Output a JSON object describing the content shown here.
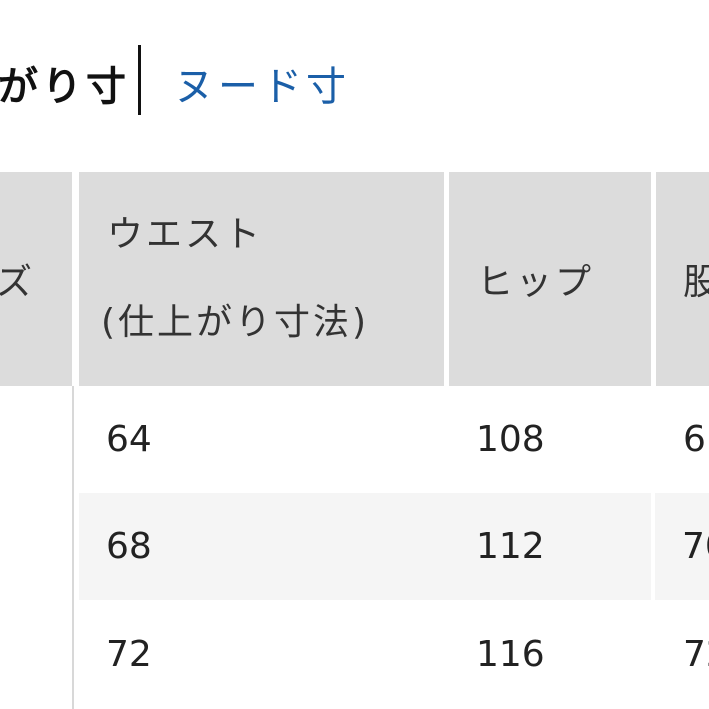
{
  "tabs": {
    "active_label": "がり寸",
    "other_label": "ヌード寸"
  },
  "colors": {
    "accent": "#1b5fa8",
    "header_bg": "#dcdcdc",
    "alt_row_bg": "#f5f5f5"
  },
  "table": {
    "headers": [
      {
        "line1": "ズ"
      },
      {
        "line1": "ウエスト",
        "line2": "(仕上がり寸法)"
      },
      {
        "line1": "ヒップ"
      },
      {
        "line1": "股"
      }
    ],
    "rows": [
      [
        "",
        "64",
        "108",
        "6"
      ],
      [
        "",
        "68",
        "112",
        "70"
      ],
      [
        "",
        "72",
        "116",
        "72"
      ]
    ]
  }
}
